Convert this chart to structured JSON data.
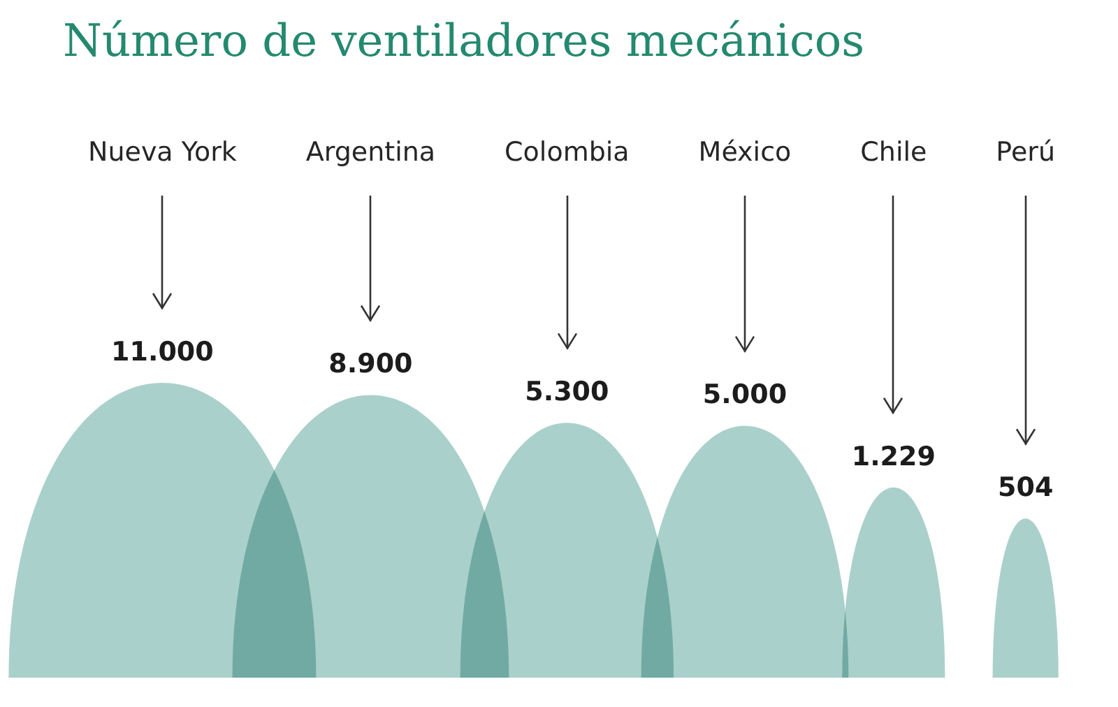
{
  "chart_data": {
    "type": "other",
    "title": "Número de ventiladores mecánicos",
    "categories": [
      "Nueva York",
      "Argentina",
      "Colombia",
      "México",
      "Chile",
      "Perú"
    ],
    "values": [
      11000,
      8900,
      5300,
      5000,
      1229,
      504
    ],
    "value_labels": [
      "11.000",
      "8.900",
      "5.300",
      "5.000",
      "1.229",
      "504"
    ],
    "color": "#aad0cb"
  }
}
